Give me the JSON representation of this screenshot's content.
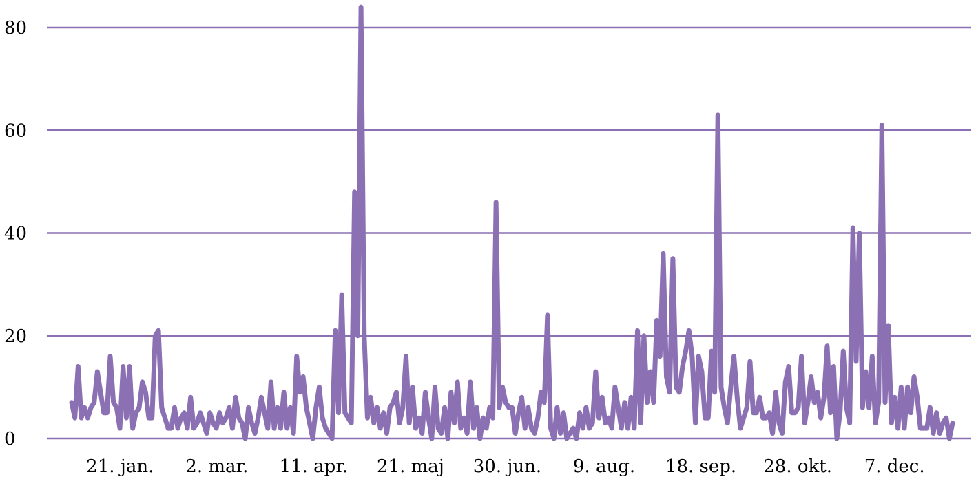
{
  "chart_data": {
    "type": "line",
    "title": "",
    "xlabel": "",
    "ylabel": "",
    "ylim": [
      0,
      80
    ],
    "yticks": [
      0,
      20,
      40,
      60,
      80
    ],
    "grid": "horizontal",
    "xlim": [
      "2023-01-01",
      "2023-12-31"
    ],
    "xticks": [
      {
        "date": "2023-01-21",
        "label": "21. jan."
      },
      {
        "date": "2023-03-02",
        "label": "2. mar."
      },
      {
        "date": "2023-04-11",
        "label": "11. apr."
      },
      {
        "date": "2023-05-21",
        "label": "21. maj"
      },
      {
        "date": "2023-06-30",
        "label": "30. jun."
      },
      {
        "date": "2023-08-09",
        "label": "9. aug."
      },
      {
        "date": "2023-09-18",
        "label": "18. sep."
      },
      {
        "date": "2023-10-28",
        "label": "28. okt."
      },
      {
        "date": "2023-12-07",
        "label": "7. dec."
      }
    ],
    "colors": {
      "line": "#8b71b3",
      "grid": "#8b71b3",
      "text": "#000000"
    },
    "series": [
      {
        "values": [
          7,
          4,
          14,
          4,
          6,
          4,
          6,
          7,
          13,
          9,
          5,
          5,
          16,
          7,
          6,
          2,
          14,
          4,
          14,
          2,
          5,
          6,
          11,
          9,
          4,
          4,
          20,
          21,
          6,
          4,
          2,
          2,
          6,
          2,
          4,
          5,
          2,
          8,
          2,
          3,
          5,
          3,
          1,
          5,
          3,
          2,
          5,
          3,
          4,
          6,
          2,
          8,
          4,
          3,
          0,
          6,
          3,
          1,
          4,
          8,
          5,
          2,
          11,
          2,
          6,
          2,
          9,
          2,
          6,
          1,
          16,
          9,
          12,
          6,
          3,
          0,
          6,
          10,
          4,
          2,
          1,
          0,
          21,
          5,
          28,
          5,
          4,
          3,
          48,
          20,
          84,
          20,
          4,
          8,
          3,
          6,
          2,
          5,
          1,
          6,
          7,
          9,
          3,
          6,
          16,
          3,
          10,
          2,
          4,
          1,
          9,
          4,
          0,
          10,
          2,
          1,
          6,
          0,
          9,
          3,
          11,
          2,
          4,
          1,
          11,
          2,
          6,
          0,
          4,
          2,
          6,
          4,
          46,
          6,
          10,
          7,
          6,
          6,
          1,
          5,
          8,
          2,
          6,
          2,
          1,
          4,
          9,
          7,
          24,
          2,
          0,
          6,
          1,
          5,
          0,
          1,
          2,
          0,
          5,
          2,
          6,
          2,
          3,
          13,
          4,
          8,
          3,
          4,
          2,
          10,
          6,
          2,
          7,
          2,
          8,
          2,
          21,
          3,
          20,
          7,
          13,
          7,
          23,
          16,
          36,
          12,
          9,
          35,
          10,
          9,
          14,
          17,
          21,
          16,
          3,
          16,
          13,
          4,
          4,
          17,
          9,
          63,
          10,
          6,
          3,
          10,
          16,
          8,
          2,
          4,
          6,
          15,
          5,
          5,
          8,
          4,
          4,
          5,
          1,
          9,
          3,
          1,
          11,
          14,
          5,
          5,
          6,
          16,
          3,
          7,
          12,
          7,
          9,
          4,
          8,
          18,
          5,
          14,
          0,
          5,
          17,
          6,
          3,
          41,
          15,
          40,
          6,
          13,
          6,
          16,
          3,
          7,
          61,
          7,
          22,
          3,
          8,
          2,
          10,
          2,
          10,
          5,
          12,
          8,
          2,
          2,
          2,
          6,
          1,
          5,
          1,
          3,
          4,
          0,
          3
        ]
      }
    ]
  }
}
